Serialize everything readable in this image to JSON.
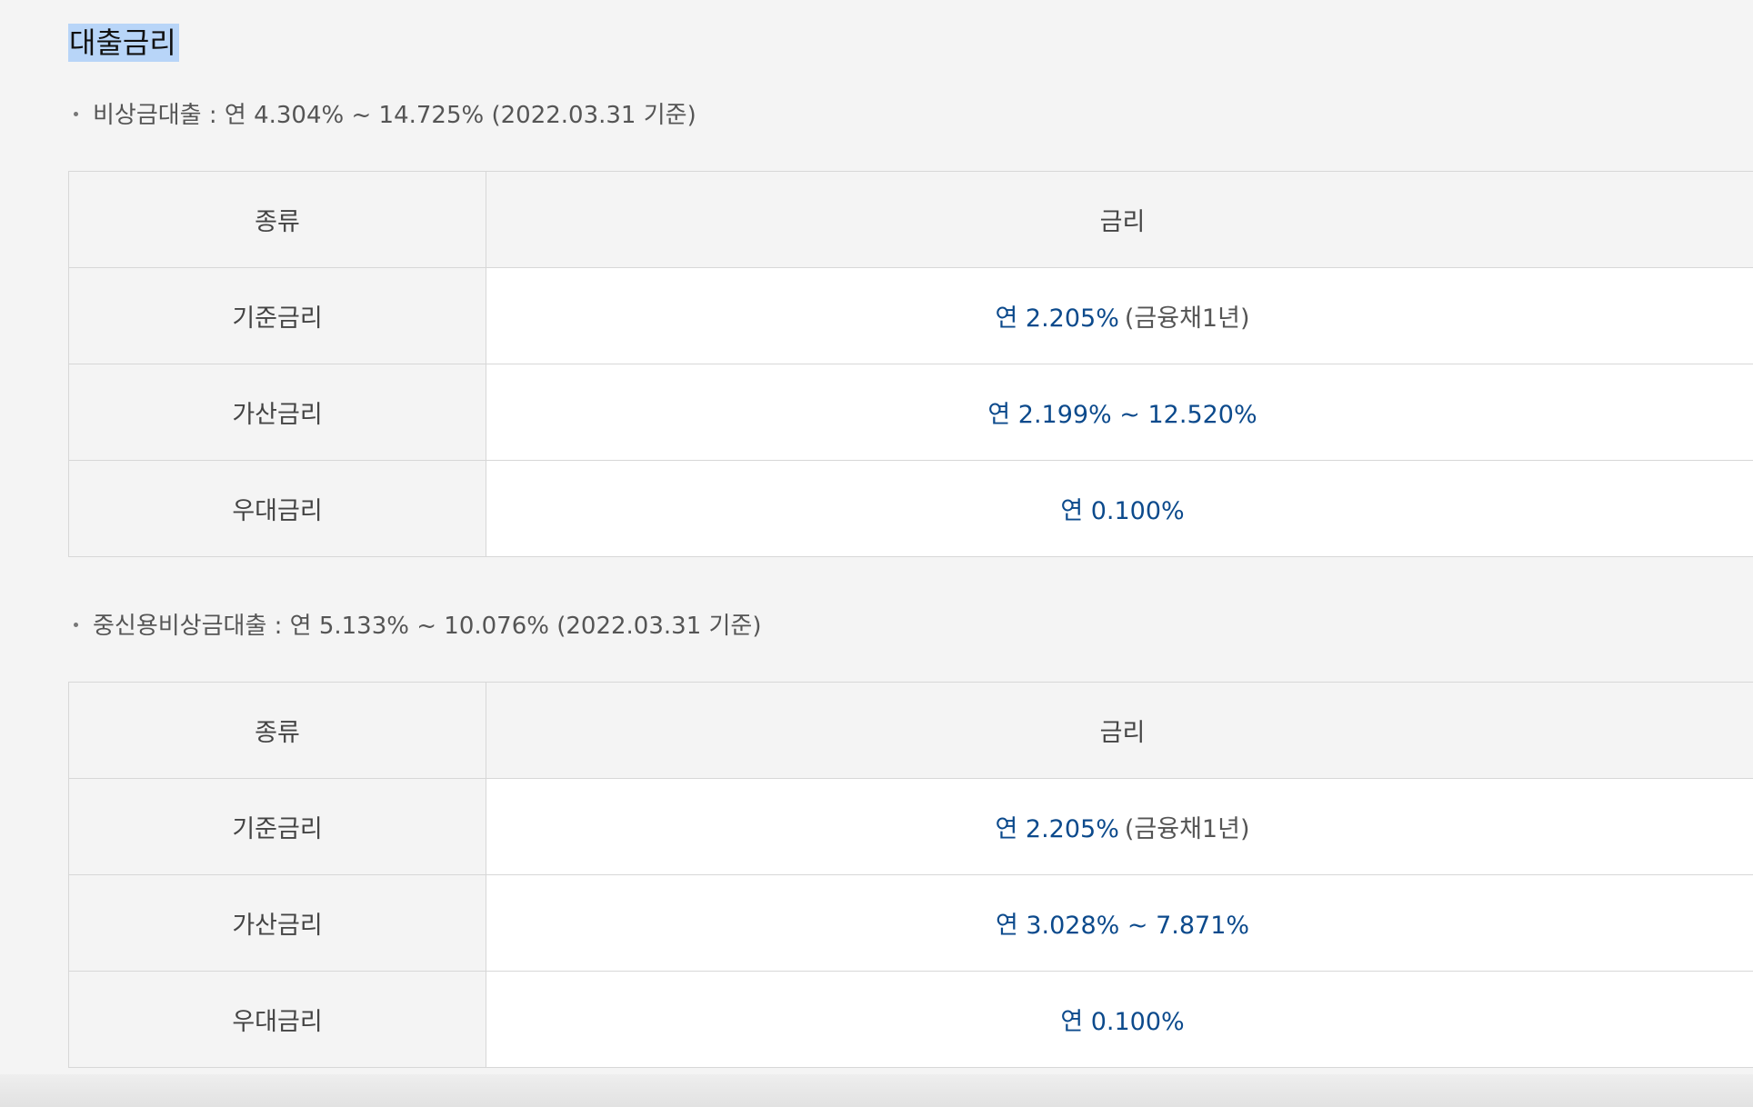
{
  "heading": "대출금리",
  "sections": [
    {
      "summary": "비상금대출 : 연 4.304% ~ 14.725% (2022.03.31 기준)",
      "table": {
        "header": [
          "종류",
          "금리"
        ],
        "rows": [
          {
            "label": "기준금리",
            "rate": "연 2.205%",
            "note": "(금융채1년)"
          },
          {
            "label": "가산금리",
            "rate": "연 2.199% ~ 12.520%",
            "note": ""
          },
          {
            "label": "우대금리",
            "rate": "연 0.100%",
            "note": ""
          }
        ]
      }
    },
    {
      "summary": "중신용비상금대출 : 연 5.133% ~ 10.076% (2022.03.31 기준)",
      "table": {
        "header": [
          "종류",
          "금리"
        ],
        "rows": [
          {
            "label": "기준금리",
            "rate": "연 2.205%",
            "note": "(금융채1년)"
          },
          {
            "label": "가산금리",
            "rate": "연 3.028% ~ 7.871%",
            "note": ""
          },
          {
            "label": "우대금리",
            "rate": "연 0.100%",
            "note": ""
          }
        ]
      }
    }
  ],
  "colors": {
    "background": "#f4f4f4",
    "rate_text": "#0c4a8c",
    "heading_highlight": "#b8d5f8",
    "border": "#d7d7d7"
  }
}
